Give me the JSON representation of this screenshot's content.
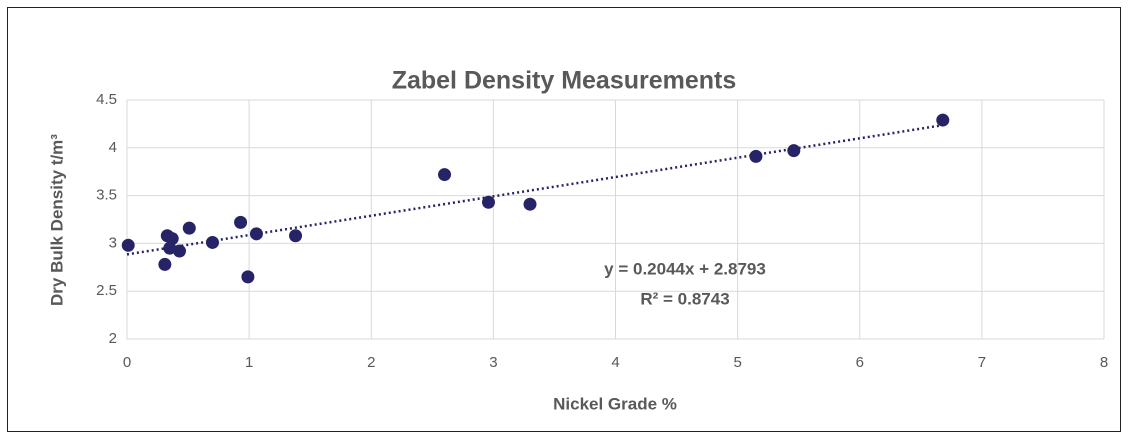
{
  "chart_data": {
    "type": "scatter",
    "title": "Zabel Density Measurements",
    "x_label": "Nickel Grade %",
    "y_label": "Dry Bulk Density t/m³",
    "series": [
      {
        "color": "#262466",
        "x": [
          0.01,
          0.31,
          0.33,
          0.37,
          0.35,
          0.43,
          0.51,
          0.7,
          0.93,
          0.99,
          1.06,
          1.38,
          2.6,
          2.96,
          3.3,
          5.15,
          5.46,
          6.68
        ],
        "values": [
          2.98,
          2.78,
          3.08,
          3.05,
          2.95,
          2.92,
          3.16,
          3.01,
          3.22,
          2.65,
          3.1,
          3.08,
          3.72,
          3.43,
          3.41,
          3.91,
          3.97,
          4.29
        ]
      }
    ],
    "trendline": {
      "equation": "y = 0.2044x + 2.8793",
      "r_squared": "R² = 0.8743",
      "style": "dotted"
    },
    "xlim": [
      0,
      8
    ],
    "xticks": [
      0,
      1,
      2,
      3,
      4,
      5,
      6,
      7,
      8
    ],
    "ylim": [
      2,
      4.5
    ],
    "yticks": [
      2,
      2.5,
      3,
      3.5,
      4,
      4.5
    ],
    "grid": true
  }
}
